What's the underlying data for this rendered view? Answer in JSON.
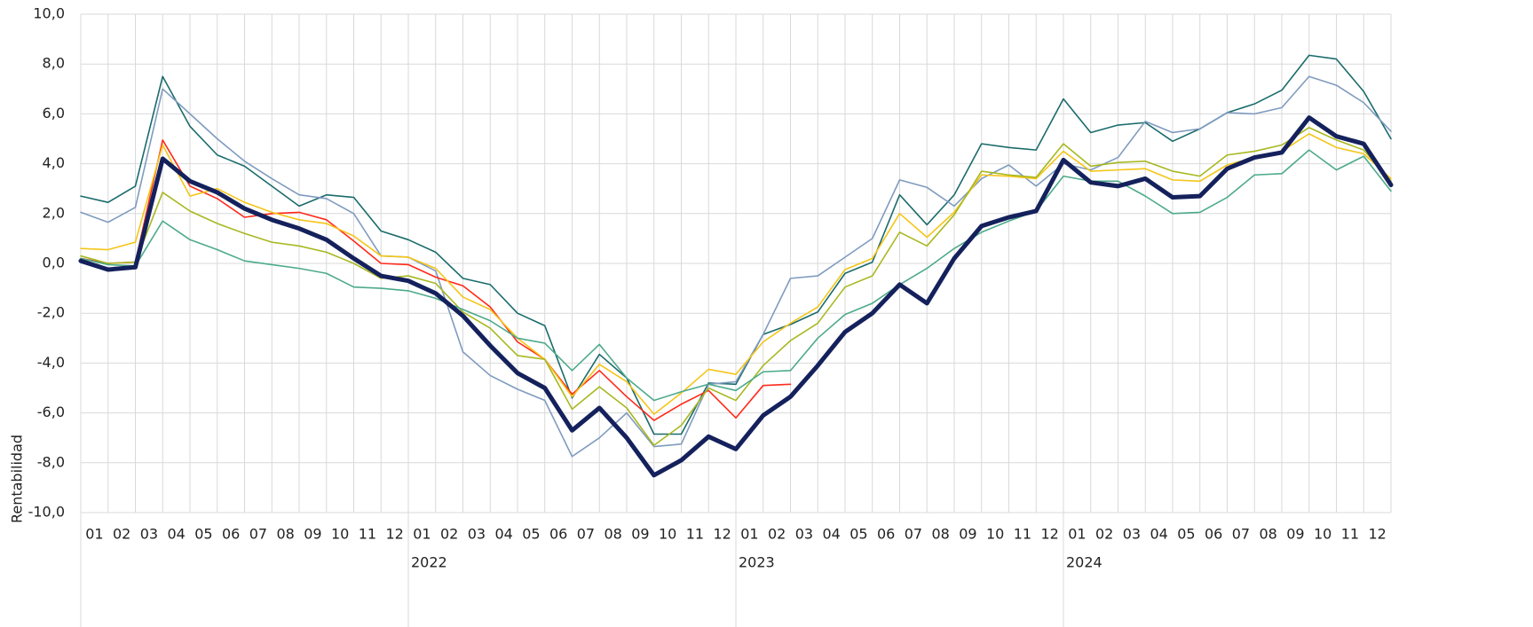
{
  "chart_data": {
    "type": "line",
    "y_label": "Rentabilidad",
    "categories": [
      null,
      "01",
      "02",
      "03",
      "04",
      "05",
      "06",
      "07",
      "08",
      "09",
      "10",
      "11",
      "12",
      "01",
      "02",
      "03",
      "04",
      "05",
      "06",
      "07",
      "08",
      "09",
      "10",
      "11",
      "12",
      "01",
      "02",
      "03",
      "04",
      "05",
      "06",
      "07",
      "08",
      "09",
      "10",
      "11",
      "12",
      "01",
      "02",
      "03",
      "04",
      "05",
      "06",
      "07",
      "08",
      "09",
      "10",
      "11",
      "12"
    ],
    "category_groups": [
      null,
      "2022",
      "2023",
      "2024"
    ],
    "ylim": [
      -10,
      10
    ],
    "yticks": [
      {
        "value": -10,
        "label": "-10,0"
      },
      {
        "value": -8,
        "label": "-8,0"
      },
      {
        "value": -6,
        "label": "-6,0"
      },
      {
        "value": -4,
        "label": "-4,0"
      },
      {
        "value": -2,
        "label": "-2,0"
      },
      {
        "value": 0,
        "label": "0,0"
      },
      {
        "value": 2,
        "label": "2,0"
      },
      {
        "value": 4,
        "label": "4,0"
      },
      {
        "value": 6,
        "label": "6,0"
      },
      {
        "value": 8,
        "label": "8,0"
      },
      {
        "value": 10,
        "label": "10,0"
      }
    ],
    "grid": true,
    "series": [
      {
        "color": "#1a6b6b",
        "width": 1.6,
        "values": [
          2.7,
          2.45,
          3.1,
          7.5,
          5.5,
          4.35,
          3.9,
          3.1,
          2.3,
          2.75,
          2.65,
          1.3,
          0.95,
          0.45,
          -0.6,
          -0.85,
          -2.0,
          -2.5,
          -5.4,
          -3.65,
          -4.6,
          -6.85,
          -6.85,
          -4.8,
          -4.85,
          -2.85,
          -2.45,
          -1.95,
          -0.4,
          0.05,
          2.75,
          1.55,
          2.75,
          4.8,
          4.65,
          4.55,
          6.6,
          5.25,
          5.55,
          5.65,
          4.9,
          5.4,
          6.05,
          6.4,
          6.95,
          8.35,
          8.2,
          6.9,
          5.0
        ]
      },
      {
        "color": "#7f9bbf",
        "width": 1.6,
        "values": [
          2.05,
          1.65,
          2.25,
          7.0,
          6.0,
          5.0,
          4.1,
          3.4,
          2.75,
          2.6,
          2.0,
          0.3,
          0.25,
          -0.3,
          -3.55,
          -4.5,
          -5.05,
          -5.5,
          -7.75,
          -7.0,
          -6.0,
          -7.35,
          -7.25,
          -4.85,
          -4.75,
          -2.85,
          -0.6,
          -0.5,
          0.25,
          1.0,
          3.35,
          3.05,
          2.3,
          3.4,
          3.95,
          3.1,
          4.0,
          3.75,
          4.25,
          5.7,
          5.25,
          5.4,
          6.05,
          6.0,
          6.25,
          7.5,
          7.15,
          6.45,
          5.3
        ]
      },
      {
        "color": "#ff2a1a",
        "width": 1.6,
        "values": [
          0.2,
          0.0,
          0.05,
          4.95,
          3.1,
          2.6,
          1.85,
          2.0,
          2.05,
          1.75,
          0.9,
          0.0,
          -0.05,
          -0.55,
          -0.9,
          -1.75,
          -3.15,
          -3.85,
          -5.25,
          -4.3,
          -5.35,
          -6.3,
          -5.65,
          -5.1,
          -6.2,
          -4.9,
          -4.85,
          null,
          null,
          null,
          null,
          null,
          null,
          null,
          null,
          null,
          null,
          null,
          null,
          null,
          null,
          null,
          null,
          null,
          null,
          null,
          null,
          null,
          null
        ]
      },
      {
        "color": "#f5c518",
        "width": 1.6,
        "values": [
          0.6,
          0.55,
          0.85,
          4.75,
          2.7,
          3.0,
          2.45,
          2.05,
          1.75,
          1.6,
          1.1,
          0.3,
          0.25,
          -0.2,
          -1.35,
          -1.85,
          -3.0,
          -3.85,
          -5.35,
          -4.05,
          -4.75,
          -6.05,
          -5.2,
          -4.25,
          -4.45,
          -3.15,
          -2.4,
          -1.75,
          -0.25,
          0.2,
          2.0,
          1.05,
          2.05,
          3.55,
          3.5,
          3.4,
          4.5,
          3.7,
          3.75,
          3.8,
          3.35,
          3.3,
          3.95,
          4.25,
          4.5,
          5.2,
          4.65,
          4.4,
          3.4
        ]
      },
      {
        "color": "#a8b820",
        "width": 1.6,
        "values": [
          0.3,
          0.0,
          0.05,
          2.85,
          2.1,
          1.6,
          1.2,
          0.85,
          0.7,
          0.45,
          0.0,
          -0.6,
          -0.5,
          -0.8,
          -1.95,
          -2.6,
          -3.7,
          -3.85,
          -5.85,
          -4.95,
          -5.8,
          -7.3,
          -6.5,
          -5.0,
          -5.5,
          -4.1,
          -3.1,
          -2.4,
          -0.95,
          -0.5,
          1.25,
          0.7,
          1.95,
          3.7,
          3.55,
          3.45,
          4.8,
          3.9,
          4.05,
          4.1,
          3.7,
          3.5,
          4.35,
          4.5,
          4.75,
          5.45,
          4.95,
          4.55,
          3.3
        ]
      },
      {
        "color": "#4daa8a",
        "width": 1.6,
        "values": [
          0.2,
          -0.05,
          -0.1,
          1.7,
          0.95,
          0.55,
          0.1,
          -0.05,
          -0.2,
          -0.4,
          -0.95,
          -1.0,
          -1.1,
          -1.4,
          -1.85,
          -2.3,
          -3.0,
          -3.2,
          -4.3,
          -3.25,
          -4.6,
          -5.5,
          -5.15,
          -4.85,
          -5.1,
          -4.35,
          -4.3,
          -3.0,
          -2.05,
          -1.6,
          -0.85,
          -0.2,
          0.6,
          1.25,
          1.7,
          2.1,
          3.5,
          3.3,
          3.3,
          2.7,
          2.0,
          2.05,
          2.65,
          3.55,
          3.6,
          4.55,
          3.75,
          4.3,
          2.9
        ]
      },
      {
        "color": "#14215c",
        "width": 5,
        "values": [
          0.1,
          -0.25,
          -0.15,
          4.2,
          3.3,
          2.85,
          2.2,
          1.75,
          1.4,
          0.95,
          0.2,
          -0.5,
          -0.7,
          -1.2,
          -2.1,
          -3.3,
          -4.4,
          -5.0,
          -6.7,
          -5.8,
          -7.0,
          -8.5,
          -7.9,
          -6.95,
          -7.45,
          -6.1,
          -5.35,
          -4.1,
          -2.75,
          -2.0,
          -0.85,
          -1.6,
          0.2,
          1.5,
          1.85,
          2.1,
          4.15,
          3.25,
          3.1,
          3.4,
          2.65,
          2.7,
          3.8,
          4.25,
          4.45,
          5.85,
          5.1,
          4.8,
          3.15
        ]
      }
    ]
  }
}
